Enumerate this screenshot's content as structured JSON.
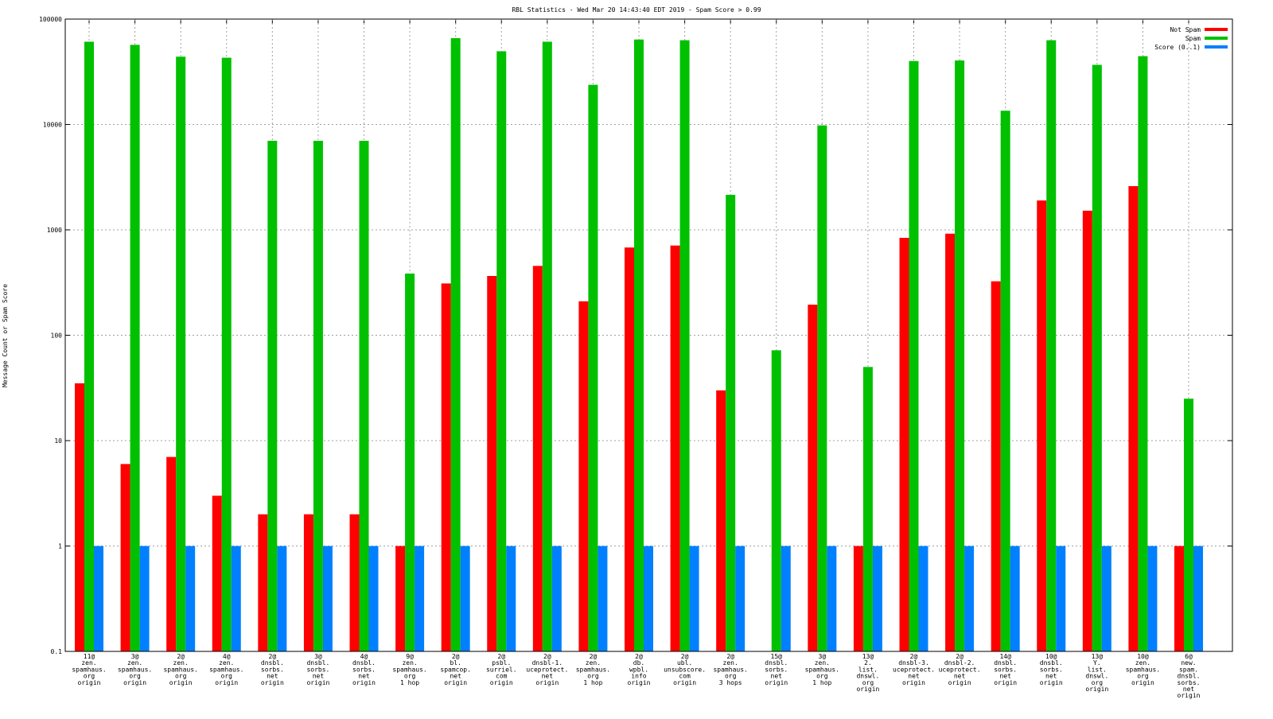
{
  "chart_data": {
    "type": "bar",
    "title": "RBL Statistics - Wed Mar 20 14:43:40 EDT 2019 - Spam Score > 0.99",
    "xlabel": "",
    "ylabel": "Message Count or Spam Score",
    "yscale": "log",
    "ylim": [
      0.1,
      100000
    ],
    "yticks": [
      "0.1",
      "1",
      "10",
      "100",
      "1000",
      "10000",
      "100000"
    ],
    "grid": true,
    "legend_position": "top-right",
    "categories": [
      [
        "11@",
        "zen.",
        "spamhaus.",
        "org",
        "origin"
      ],
      [
        "3@",
        "zen.",
        "spamhaus.",
        "org",
        "origin"
      ],
      [
        "2@",
        "zen.",
        "spamhaus.",
        "org",
        "origin"
      ],
      [
        "4@",
        "zen.",
        "spamhaus.",
        "org",
        "origin"
      ],
      [
        "2@",
        "dnsbl.",
        "sorbs.",
        "net",
        "origin"
      ],
      [
        "3@",
        "dnsbl.",
        "sorbs.",
        "net",
        "origin"
      ],
      [
        "4@",
        "dnsbl.",
        "sorbs.",
        "net",
        "origin"
      ],
      [
        "9@",
        "zen.",
        "spamhaus.",
        "org",
        "1 hop"
      ],
      [
        "2@",
        "bl.",
        "spamcop.",
        "net",
        "origin"
      ],
      [
        "2@",
        "psbl.",
        "surriel.",
        "com",
        "origin"
      ],
      [
        "2@",
        "dnsbl-1.",
        "uceprotect.",
        "net",
        "origin"
      ],
      [
        "2@",
        "zen.",
        "spamhaus.",
        "org",
        "1 hop"
      ],
      [
        "2@",
        "db.",
        "wpbl.",
        "info",
        "origin"
      ],
      [
        "2@",
        "ubl.",
        "unsubscore.",
        "com",
        "origin"
      ],
      [
        "2@",
        "zen.",
        "spamhaus.",
        "org",
        "3 hops"
      ],
      [
        "15@",
        "dnsbl.",
        "sorbs.",
        "net",
        "origin"
      ],
      [
        "3@",
        "zen.",
        "spamhaus.",
        "org",
        "1 hop"
      ],
      [
        "13@",
        "2.",
        "list.",
        "dnswl.",
        "org",
        "origin"
      ],
      [
        "2@",
        "dnsbl-3.",
        "uceprotect.",
        "net",
        "origin"
      ],
      [
        "2@",
        "dnsbl-2.",
        "uceprotect.",
        "net",
        "origin"
      ],
      [
        "14@",
        "dnsbl.",
        "sorbs.",
        "net",
        "origin"
      ],
      [
        "10@",
        "dnsbl.",
        "sorbs.",
        "net",
        "origin"
      ],
      [
        "13@",
        "Y.",
        "list.",
        "dnswl.",
        "org",
        "origin"
      ],
      [
        "10@",
        "zen.",
        "spamhaus.",
        "org",
        "origin"
      ],
      [
        "6@",
        "new.",
        "spam.",
        "dnsbl.",
        "sorbs.",
        "net",
        "origin"
      ]
    ],
    "series": [
      {
        "name": "Not Spam",
        "color": "#ff0000",
        "values": [
          35,
          6,
          7,
          3,
          2,
          2,
          2,
          1,
          310,
          365,
          455,
          210,
          680,
          710,
          30,
          0,
          195,
          1,
          840,
          920,
          325,
          1900,
          1520,
          2600,
          1
        ]
      },
      {
        "name": "Spam",
        "color": "#00c000",
        "values": [
          61000,
          57000,
          44000,
          43000,
          7000,
          7000,
          7000,
          385,
          66000,
          49500,
          61000,
          23800,
          64000,
          63000,
          2150,
          72,
          9800,
          50,
          40000,
          40500,
          13500,
          63000,
          36800,
          44500,
          25
        ]
      },
      {
        "name": "Score (0..1)",
        "color": "#0080ff",
        "values": [
          1,
          1,
          1,
          1,
          1,
          1,
          1,
          1,
          1,
          1,
          1,
          1,
          1,
          1,
          1,
          1,
          1,
          1,
          1,
          1,
          1,
          1,
          1,
          1,
          1
        ]
      }
    ]
  }
}
